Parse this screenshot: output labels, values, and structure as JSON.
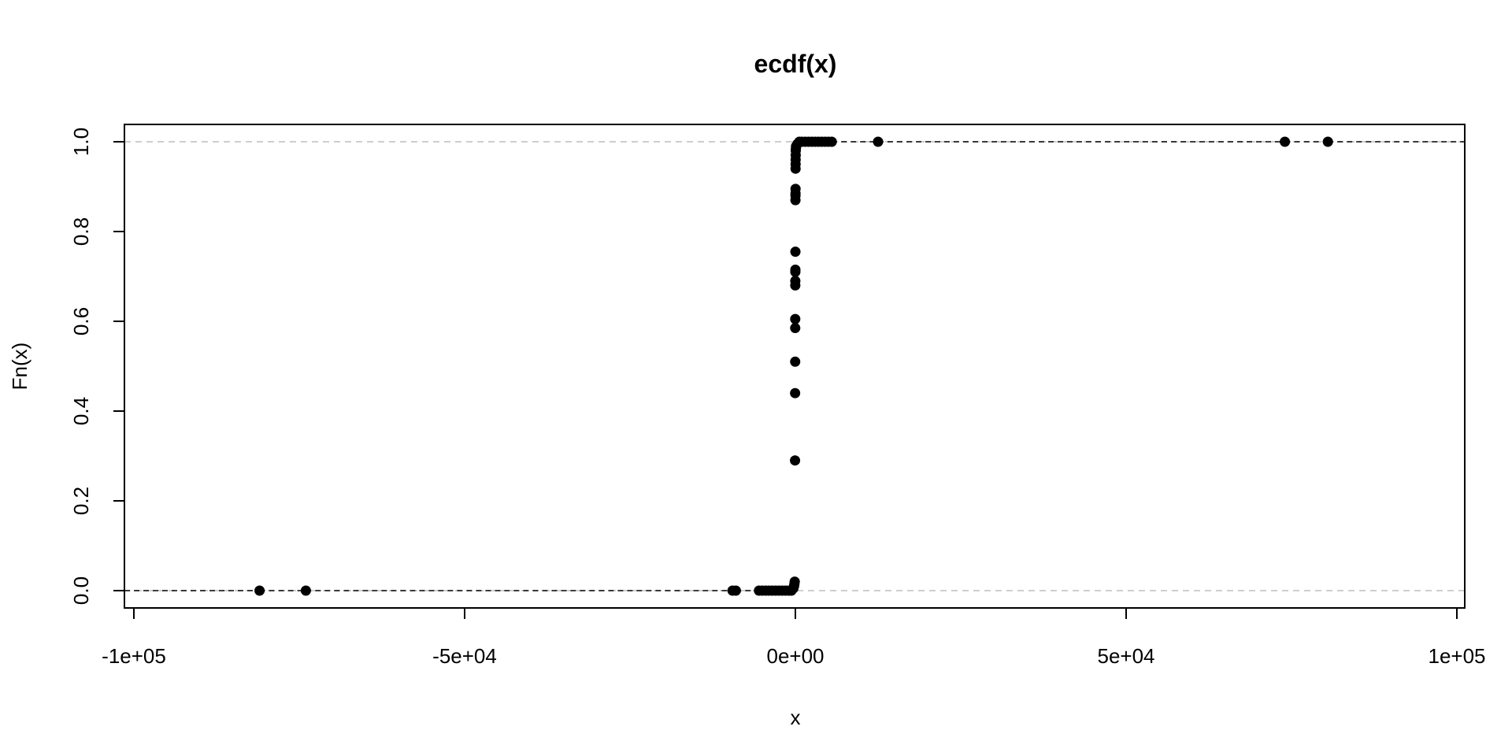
{
  "chart_data": {
    "type": "scatter",
    "subtype": "ecdf",
    "title": "ecdf(x)",
    "xlabel": "x",
    "ylabel": "Fn(x)",
    "xlim": [
      -100000,
      100000
    ],
    "ylim": [
      0,
      1
    ],
    "x_ticks": [
      -100000,
      -50000,
      0,
      50000,
      100000
    ],
    "x_tick_labels": [
      "-1e+05",
      "-5e+04",
      "0e+00",
      "5e+04",
      "1e+05"
    ],
    "y_ticks": [
      0.0,
      0.2,
      0.4,
      0.6,
      0.8,
      1.0
    ],
    "y_tick_labels": [
      "0.0",
      "0.2",
      "0.4",
      "0.6",
      "0.8",
      "1.0"
    ],
    "reference_lines": [
      0,
      1
    ],
    "reference_line_color": "#bebebe",
    "point_color": "#000000",
    "grid": false,
    "legend": "none",
    "points": [
      {
        "x": -81000,
        "y": 0.0
      },
      {
        "x": -74000,
        "y": 0.0
      },
      {
        "x": -9500,
        "y": 0.0
      },
      {
        "x": -9000,
        "y": 0.0
      },
      {
        "x": -5500,
        "y": 0.0
      },
      {
        "x": -5000,
        "y": 0.0
      },
      {
        "x": -4500,
        "y": 0.0
      },
      {
        "x": -4000,
        "y": 0.0
      },
      {
        "x": -3500,
        "y": 0.0
      },
      {
        "x": -3000,
        "y": 0.0
      },
      {
        "x": -2500,
        "y": 0.0
      },
      {
        "x": -2000,
        "y": 0.0
      },
      {
        "x": -1500,
        "y": 0.0
      },
      {
        "x": -1000,
        "y": 0.0
      },
      {
        "x": -600,
        "y": 0.0
      },
      {
        "x": -300,
        "y": 0.005
      },
      {
        "x": -200,
        "y": 0.01
      },
      {
        "x": -150,
        "y": 0.015
      },
      {
        "x": -100,
        "y": 0.02
      },
      {
        "x": -50,
        "y": 0.29
      },
      {
        "x": -40,
        "y": 0.44
      },
      {
        "x": -30,
        "y": 0.51
      },
      {
        "x": -25,
        "y": 0.585
      },
      {
        "x": -20,
        "y": 0.605
      },
      {
        "x": -15,
        "y": 0.68
      },
      {
        "x": -10,
        "y": 0.69
      },
      {
        "x": -5,
        "y": 0.71
      },
      {
        "x": 0,
        "y": 0.715
      },
      {
        "x": 5,
        "y": 0.755
      },
      {
        "x": 10,
        "y": 0.87
      },
      {
        "x": 15,
        "y": 0.88
      },
      {
        "x": 20,
        "y": 0.885
      },
      {
        "x": 25,
        "y": 0.895
      },
      {
        "x": 30,
        "y": 0.94
      },
      {
        "x": 35,
        "y": 0.95
      },
      {
        "x": 40,
        "y": 0.96
      },
      {
        "x": 50,
        "y": 0.97
      },
      {
        "x": 60,
        "y": 0.98
      },
      {
        "x": 80,
        "y": 0.985
      },
      {
        "x": 100,
        "y": 0.99
      },
      {
        "x": 300,
        "y": 0.995
      },
      {
        "x": 600,
        "y": 1.0
      },
      {
        "x": 1000,
        "y": 1.0
      },
      {
        "x": 1500,
        "y": 1.0
      },
      {
        "x": 2000,
        "y": 1.0
      },
      {
        "x": 2500,
        "y": 1.0
      },
      {
        "x": 3000,
        "y": 1.0
      },
      {
        "x": 3500,
        "y": 1.0
      },
      {
        "x": 4000,
        "y": 1.0
      },
      {
        "x": 4500,
        "y": 1.0
      },
      {
        "x": 5000,
        "y": 1.0
      },
      {
        "x": 5500,
        "y": 1.0
      },
      {
        "x": 12500,
        "y": 1.0
      },
      {
        "x": 74000,
        "y": 1.0
      },
      {
        "x": 80500,
        "y": 1.0
      }
    ]
  }
}
